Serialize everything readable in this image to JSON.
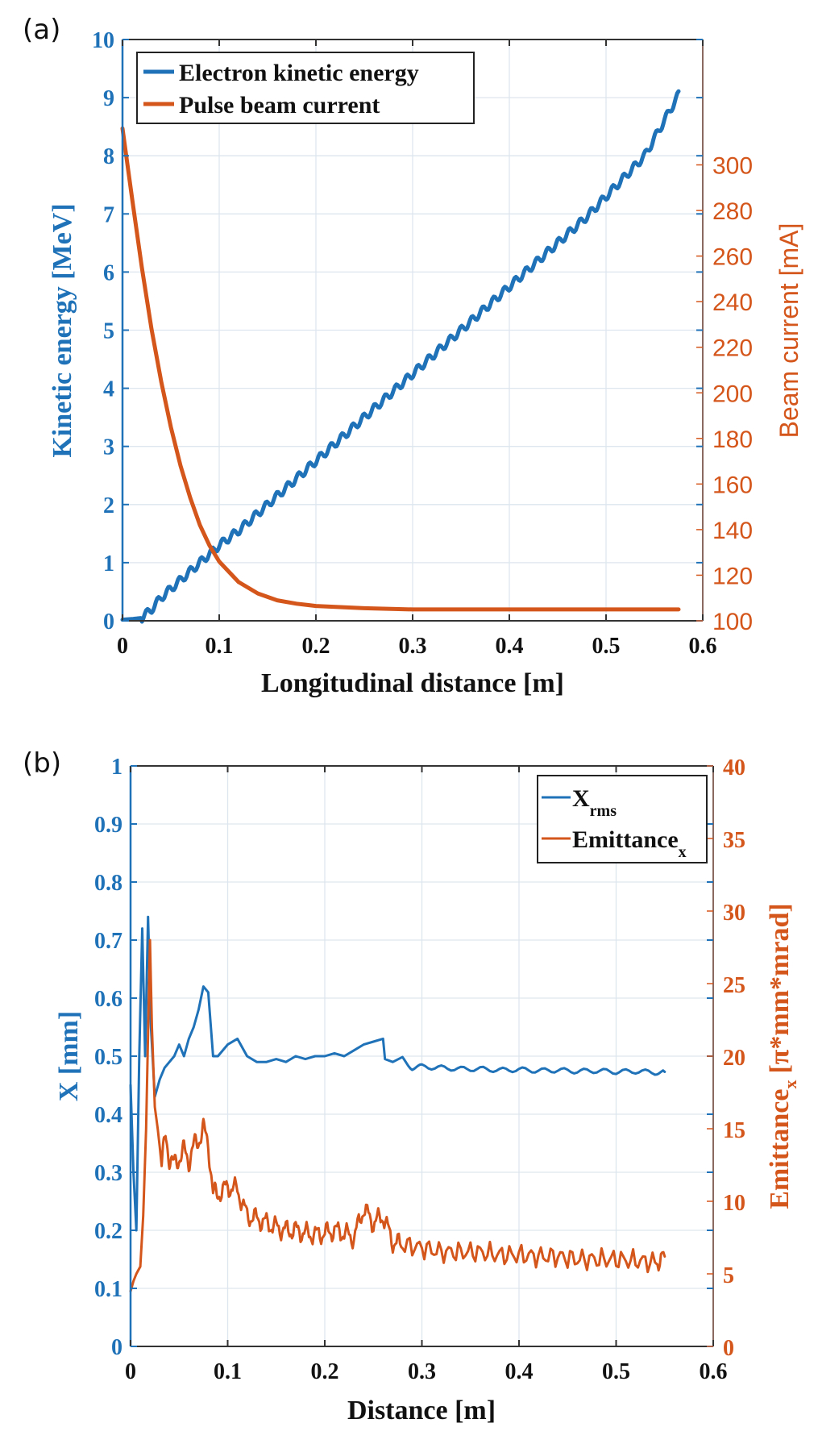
{
  "colors": {
    "blue": "#1f72b8",
    "orange": "#d5561b",
    "axis_dark": "#333333",
    "grid": "#dde6ee"
  },
  "chart_data": [
    {
      "panel_label": "(a)",
      "type": "line",
      "xlabel": "Longitudinal distance [m]",
      "ylabel_left": "Kinetic energy [MeV]",
      "ylabel_right": "Beam current [mA]",
      "xlim": [
        0,
        0.6
      ],
      "ylim_left": [
        0,
        10
      ],
      "ylim_right": [
        100,
        355
      ],
      "x_ticks": [
        "0",
        "0.1",
        "0.2",
        "0.3",
        "0.4",
        "0.5",
        "0.6"
      ],
      "y_ticks_left": [
        "0",
        "1",
        "2",
        "3",
        "4",
        "5",
        "6",
        "7",
        "8",
        "9",
        "10"
      ],
      "y_ticks_right": [
        "100",
        "120",
        "140",
        "160",
        "180",
        "200",
        "220",
        "240",
        "260",
        "280",
        "300"
      ],
      "grid": true,
      "legend_position": "top-left",
      "legend": [
        "Electron kinetic energy",
        "Pulse beam current"
      ],
      "series": [
        {
          "name": "Electron kinetic energy",
          "axis": "left",
          "x": [
            0,
            0.01,
            0.02,
            0.03,
            0.04,
            0.05,
            0.06,
            0.07,
            0.08,
            0.09,
            0.1,
            0.12,
            0.14,
            0.16,
            0.18,
            0.2,
            0.22,
            0.24,
            0.26,
            0.28,
            0.3,
            0.32,
            0.34,
            0.36,
            0.38,
            0.4,
            0.42,
            0.44,
            0.46,
            0.48,
            0.5,
            0.52,
            0.54,
            0.56,
            0.575
          ],
          "values": [
            0.02,
            0.03,
            0.05,
            0.2,
            0.4,
            0.55,
            0.7,
            0.85,
            1.0,
            1.15,
            1.3,
            1.55,
            1.85,
            2.15,
            2.45,
            2.75,
            3.05,
            3.35,
            3.65,
            3.95,
            4.25,
            4.55,
            4.85,
            5.15,
            5.45,
            5.75,
            6.05,
            6.35,
            6.65,
            6.95,
            7.3,
            7.65,
            8.0,
            8.6,
            9.05
          ]
        },
        {
          "name": "Pulse beam current",
          "axis": "right",
          "x": [
            0,
            0.01,
            0.02,
            0.03,
            0.04,
            0.05,
            0.06,
            0.07,
            0.08,
            0.09,
            0.1,
            0.12,
            0.14,
            0.16,
            0.18,
            0.2,
            0.25,
            0.3,
            0.35,
            0.4,
            0.5,
            0.575
          ],
          "values": [
            316,
            285,
            255,
            228,
            205,
            185,
            168,
            154,
            142,
            133,
            126,
            117,
            112,
            109,
            107.5,
            106.5,
            105.5,
            105,
            105,
            105,
            105,
            105
          ]
        }
      ]
    },
    {
      "panel_label": "(b)",
      "type": "line",
      "xlabel": "Distance [m]",
      "ylabel_left": "X [mm]",
      "ylabel_right_main": "Emittance",
      "ylabel_right_sub": "x",
      "ylabel_right_units": "[π*mm*mrad]",
      "xlim": [
        0,
        0.6
      ],
      "ylim_left": [
        0,
        1
      ],
      "ylim_right": [
        0,
        40
      ],
      "x_ticks": [
        "0",
        "0.1",
        "0.2",
        "0.3",
        "0.4",
        "0.5",
        "0.6"
      ],
      "y_ticks_left": [
        "0",
        "0.1",
        "0.2",
        "0.3",
        "0.4",
        "0.5",
        "0.6",
        "0.7",
        "0.8",
        "0.9",
        "1"
      ],
      "y_ticks_right": [
        "0",
        "5",
        "10",
        "15",
        "20",
        "25",
        "30",
        "35",
        "40"
      ],
      "grid": true,
      "legend_position": "top-right",
      "legend": [
        {
          "main": "X",
          "sub": "rms"
        },
        {
          "main": "Emittance",
          "sub": "x"
        }
      ],
      "series": [
        {
          "name": "Xrms",
          "axis": "left",
          "x": [
            0,
            0.003,
            0.006,
            0.009,
            0.012,
            0.015,
            0.018,
            0.021,
            0.025,
            0.03,
            0.035,
            0.04,
            0.045,
            0.05,
            0.055,
            0.06,
            0.065,
            0.07,
            0.075,
            0.08,
            0.085,
            0.09,
            0.1,
            0.11,
            0.12,
            0.13,
            0.14,
            0.15,
            0.16,
            0.17,
            0.18,
            0.19,
            0.2,
            0.21,
            0.22,
            0.23,
            0.24,
            0.25,
            0.26,
            0.262,
            0.27,
            0.28,
            0.29,
            0.3,
            0.32,
            0.34,
            0.36,
            0.38,
            0.4,
            0.42,
            0.44,
            0.46,
            0.48,
            0.5,
            0.52,
            0.54,
            0.55
          ],
          "values": [
            0.45,
            0.3,
            0.2,
            0.5,
            0.72,
            0.5,
            0.74,
            0.55,
            0.43,
            0.46,
            0.48,
            0.49,
            0.5,
            0.52,
            0.5,
            0.53,
            0.55,
            0.58,
            0.62,
            0.61,
            0.5,
            0.5,
            0.52,
            0.53,
            0.5,
            0.49,
            0.49,
            0.495,
            0.49,
            0.5,
            0.495,
            0.5,
            0.5,
            0.505,
            0.5,
            0.51,
            0.52,
            0.525,
            0.53,
            0.495,
            0.49,
            0.495,
            0.48,
            0.482,
            0.48,
            0.478,
            0.478,
            0.476,
            0.477,
            0.475,
            0.476,
            0.474,
            0.475,
            0.473,
            0.474,
            0.472,
            0.473
          ]
        },
        {
          "name": "Emittancex",
          "axis": "right",
          "x": [
            0,
            0.003,
            0.006,
            0.01,
            0.013,
            0.016,
            0.02,
            0.022,
            0.025,
            0.028,
            0.032,
            0.036,
            0.04,
            0.045,
            0.05,
            0.055,
            0.06,
            0.065,
            0.07,
            0.075,
            0.08,
            0.085,
            0.09,
            0.1,
            0.11,
            0.12,
            0.13,
            0.14,
            0.15,
            0.16,
            0.17,
            0.18,
            0.19,
            0.2,
            0.21,
            0.22,
            0.23,
            0.24,
            0.25,
            0.26,
            0.27,
            0.28,
            0.3,
            0.32,
            0.34,
            0.36,
            0.38,
            0.4,
            0.42,
            0.44,
            0.46,
            0.48,
            0.5,
            0.52,
            0.54,
            0.55
          ],
          "values": [
            3.8,
            4.5,
            5.0,
            5.5,
            9.0,
            15.0,
            28.0,
            22.0,
            16.5,
            15.0,
            12.5,
            14.5,
            13.0,
            12.5,
            13.0,
            13.5,
            12.8,
            13.8,
            14.2,
            15.0,
            14.0,
            10.5,
            10.5,
            11.0,
            10.8,
            9.0,
            8.8,
            8.5,
            8.2,
            8.0,
            8.0,
            7.8,
            7.7,
            7.8,
            8.0,
            7.8,
            7.5,
            9.5,
            8.5,
            9.0,
            7.2,
            7.0,
            6.8,
            6.5,
            6.5,
            6.5,
            6.3,
            6.3,
            6.2,
            6.2,
            6.0,
            6.0,
            6.0,
            5.9,
            5.8,
            6.2
          ]
        }
      ]
    }
  ]
}
